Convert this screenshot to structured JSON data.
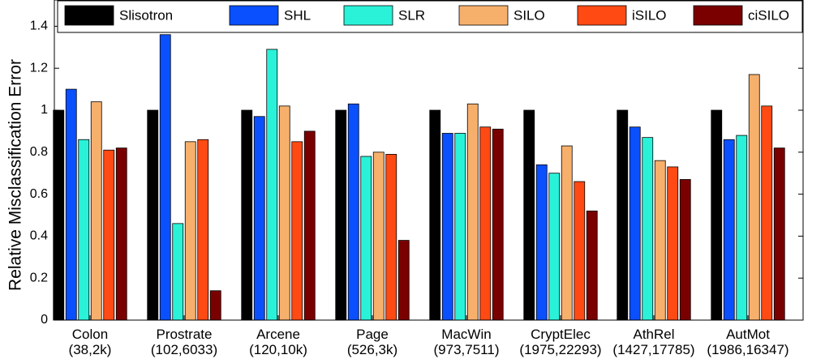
{
  "chart_data": {
    "type": "bar",
    "ylabel": "Relative Misclassification Error",
    "xlabel": "",
    "title": "",
    "ylim": [
      0,
      1.5
    ],
    "yticks": [
      0,
      0.2,
      0.4,
      0.6,
      0.8,
      1,
      1.2,
      1.4
    ],
    "ytick_labels": [
      "0",
      "0.2",
      "0.4",
      "0.6",
      "0.8",
      "1",
      "1.2",
      "1.4"
    ],
    "legend_position": "top",
    "categories": [
      {
        "name": "Colon",
        "size": "(38,2k)"
      },
      {
        "name": "Prostrate",
        "size": "(102,6033)"
      },
      {
        "name": "Arcene",
        "size": "(120,10k)"
      },
      {
        "name": "Page",
        "size": "(526,3k)"
      },
      {
        "name": "MacWin",
        "size": "(973,7511)"
      },
      {
        "name": "CryptElec",
        "size": "(1975,22293)"
      },
      {
        "name": "AthRel",
        "size": "(1427,17785)"
      },
      {
        "name": "AutMot",
        "size": "(1986,16347)"
      }
    ],
    "series": [
      {
        "name": "Slisotron",
        "color": "#000000",
        "values": [
          1.0,
          1.0,
          1.0,
          1.0,
          1.0,
          1.0,
          1.0,
          1.0
        ]
      },
      {
        "name": "SHL",
        "color": "#0a50ff",
        "values": [
          1.1,
          1.36,
          0.97,
          1.03,
          0.89,
          0.74,
          0.92,
          0.86
        ]
      },
      {
        "name": "SLR",
        "color": "#2af2d8",
        "values": [
          0.86,
          0.46,
          1.29,
          0.78,
          0.89,
          0.7,
          0.87,
          0.88
        ]
      },
      {
        "name": "SILO",
        "color": "#f7b06c",
        "values": [
          1.04,
          0.85,
          1.02,
          0.8,
          1.03,
          0.83,
          0.76,
          1.17
        ]
      },
      {
        "name": "iSILO",
        "color": "#ff4a14",
        "values": [
          0.81,
          0.86,
          0.85,
          0.79,
          0.92,
          0.66,
          0.73,
          1.02
        ]
      },
      {
        "name": "ciSILO",
        "color": "#7a0000",
        "values": [
          0.82,
          0.14,
          0.9,
          0.38,
          0.91,
          0.52,
          0.67,
          0.82
        ]
      }
    ]
  }
}
